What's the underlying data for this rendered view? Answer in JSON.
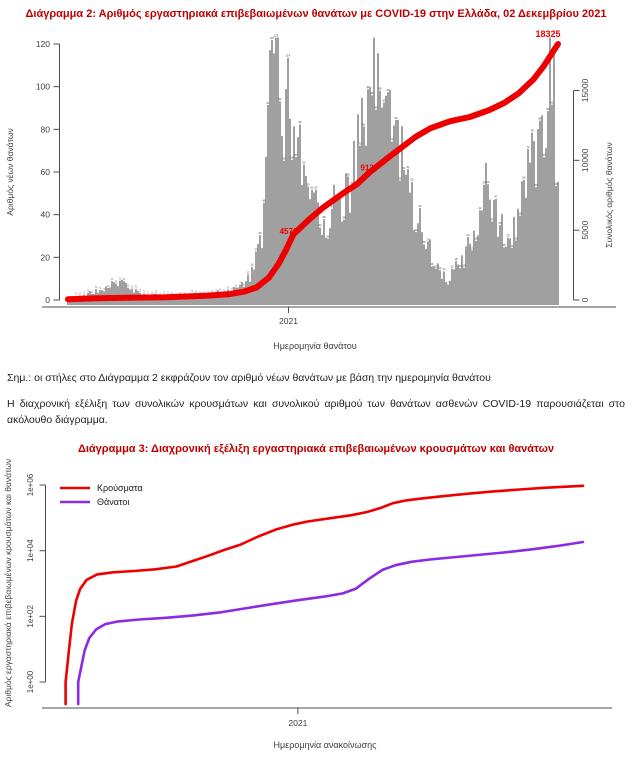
{
  "titles": {
    "chart2": "Διάγραμμα 2: Αριθμός εργαστηριακά επιβεβαιωμένων θανάτων με COVID-19 στην Ελλάδα, 02 Δεκεμβρίου 2021",
    "chart3": "Διάγραμμα 3: Διαχρονική εξέλιξη εργαστηριακά επιβεβαιωμένων κρουσμάτων και θανάτων"
  },
  "note": "Σημ.: οι στήλες στο Διάγραμμα 2 εκφράζουν τον αριθμό νέων θανάτων με βάση την ημερομηνία θανάτου",
  "paragraph": "Η διαχρονική εξέλιξη των συνολικών κρουσμάτων και συνολικού αριθμού των θανάτων ασθενών COVID-19 παρουσιάζεται στο ακόλουθο διάγραμμα.",
  "colors": {
    "title_text": "#c00000",
    "body_text": "#1f1f1f",
    "axis_line": "#4d4d4d",
    "tick_text": "#3f3f3f",
    "bars": "#8f8f8f",
    "bar_labels": "#3a3a3a",
    "cumulative_line": "#ee0000",
    "cases_line": "#ee0000",
    "deaths_line": "#8b2be2",
    "annotation_text": "#ee0000"
  },
  "chart_data": [
    {
      "type": "bar+line",
      "title": "Διάγραμμα 2: Αριθμός εργαστηριακά επιβεβαιωμένων θανάτων με COVID-19 στην Ελλάδα, 02 Δεκεμβρίου 2021",
      "xlabel": "Ημερομηνία θανάτου",
      "ylabel_left": "Αριθμός νέων θανάτων",
      "ylabel_right": "Συνολικός αριθμός θανάτων",
      "x_ticks": [
        {
          "label": "2021",
          "t": 0.45
        }
      ],
      "y_left_ticks": [
        0,
        20,
        40,
        60,
        80,
        100,
        120
      ],
      "y_right_ticks": [
        0,
        5000,
        10000,
        15000
      ],
      "ylim_left": [
        0,
        120
      ],
      "ylim_right": [
        0,
        18325
      ],
      "grid": false,
      "bars_envelope": [
        [
          0.0,
          1
        ],
        [
          0.03,
          2
        ],
        [
          0.06,
          4
        ],
        [
          0.085,
          7
        ],
        [
          0.1,
          9
        ],
        [
          0.12,
          6
        ],
        [
          0.15,
          3
        ],
        [
          0.19,
          2
        ],
        [
          0.23,
          2
        ],
        [
          0.28,
          3
        ],
        [
          0.32,
          4
        ],
        [
          0.35,
          6
        ],
        [
          0.37,
          10
        ],
        [
          0.385,
          18
        ],
        [
          0.395,
          30
        ],
        [
          0.405,
          60
        ],
        [
          0.412,
          95
        ],
        [
          0.418,
          121
        ],
        [
          0.428,
          110
        ],
        [
          0.44,
          92
        ],
        [
          0.455,
          85
        ],
        [
          0.47,
          72
        ],
        [
          0.49,
          55
        ],
        [
          0.51,
          45
        ],
        [
          0.525,
          38
        ],
        [
          0.545,
          42
        ],
        [
          0.565,
          52
        ],
        [
          0.585,
          62
        ],
        [
          0.605,
          78
        ],
        [
          0.62,
          92
        ],
        [
          0.635,
          106
        ],
        [
          0.65,
          92
        ],
        [
          0.665,
          82
        ],
        [
          0.68,
          66
        ],
        [
          0.7,
          50
        ],
        [
          0.72,
          34
        ],
        [
          0.74,
          22
        ],
        [
          0.755,
          15
        ],
        [
          0.775,
          10
        ],
        [
          0.79,
          12
        ],
        [
          0.81,
          20
        ],
        [
          0.83,
          32
        ],
        [
          0.85,
          43
        ],
        [
          0.87,
          40
        ],
        [
          0.885,
          33
        ],
        [
          0.9,
          28
        ],
        [
          0.915,
          34
        ],
        [
          0.93,
          45
        ],
        [
          0.945,
          60
        ],
        [
          0.96,
          78
        ],
        [
          0.972,
          95
        ],
        [
          0.983,
          115
        ],
        [
          0.99,
          100
        ],
        [
          1.0,
          55
        ]
      ],
      "cumulative_line": [
        [
          0.0,
          50
        ],
        [
          0.06,
          120
        ],
        [
          0.12,
          165
        ],
        [
          0.2,
          200
        ],
        [
          0.28,
          300
        ],
        [
          0.33,
          420
        ],
        [
          0.36,
          600
        ],
        [
          0.385,
          900
        ],
        [
          0.41,
          1600
        ],
        [
          0.43,
          2600
        ],
        [
          0.445,
          3600
        ],
        [
          0.46,
          4700
        ],
        [
          0.49,
          5700
        ],
        [
          0.52,
          6600
        ],
        [
          0.56,
          7600
        ],
        [
          0.59,
          8300
        ],
        [
          0.615,
          9126
        ],
        [
          0.65,
          10100
        ],
        [
          0.68,
          10900
        ],
        [
          0.71,
          11700
        ],
        [
          0.74,
          12300
        ],
        [
          0.78,
          12800
        ],
        [
          0.82,
          13100
        ],
        [
          0.86,
          13600
        ],
        [
          0.89,
          14100
        ],
        [
          0.92,
          14800
        ],
        [
          0.95,
          15800
        ],
        [
          0.97,
          16700
        ],
        [
          1.0,
          18325
        ]
      ],
      "annotations": [
        {
          "t": 0.45,
          "value": 4576,
          "label": "4576"
        },
        {
          "t": 0.615,
          "value": 9126,
          "label": "9126"
        },
        {
          "t": 1.0,
          "value": 18325,
          "label": "18325"
        }
      ]
    },
    {
      "type": "line",
      "yscale": "log",
      "title": "Διάγραμμα 3: Διαχρονική εξέλιξη εργαστηριακά επιβεβαιωμένων κρουσμάτων και θανάτων",
      "xlabel": "Ημερομηνία ανακοίνωσης",
      "ylabel": "Αριθμός εργαστηριακά επιβεβαιωμένων κρουσμάτων και θανάτων",
      "x_ticks": [
        {
          "label": "2021",
          "t": 0.46
        }
      ],
      "y_ticks": [
        "1e+00",
        "1e+02",
        "1e+04",
        "1e+06"
      ],
      "ylim": [
        1,
        1000000
      ],
      "grid": false,
      "legend_position": "topleft",
      "series": [
        {
          "name": "Κρούσματα",
          "color": "#ee0000",
          "points": [
            [
              0.02,
              1
            ],
            [
              0.026,
              8
            ],
            [
              0.032,
              60
            ],
            [
              0.04,
              300
            ],
            [
              0.048,
              700
            ],
            [
              0.06,
              1300
            ],
            [
              0.08,
              1900
            ],
            [
              0.11,
              2200
            ],
            [
              0.15,
              2400
            ],
            [
              0.19,
              2700
            ],
            [
              0.23,
              3300
            ],
            [
              0.26,
              4800
            ],
            [
              0.29,
              7000
            ],
            [
              0.32,
              10500
            ],
            [
              0.35,
              15000
            ],
            [
              0.385,
              27000
            ],
            [
              0.42,
              45000
            ],
            [
              0.45,
              62000
            ],
            [
              0.48,
              78000
            ],
            [
              0.52,
              97000
            ],
            [
              0.56,
              120000
            ],
            [
              0.59,
              150000
            ],
            [
              0.615,
              195000
            ],
            [
              0.64,
              280000
            ],
            [
              0.665,
              340000
            ],
            [
              0.695,
              390000
            ],
            [
              0.73,
              450000
            ],
            [
              0.78,
              540000
            ],
            [
              0.83,
              640000
            ],
            [
              0.88,
              730000
            ],
            [
              0.93,
              830000
            ],
            [
              1.0,
              950000
            ]
          ]
        },
        {
          "name": "Θάνατοι",
          "color": "#8b2be2",
          "points": [
            [
              0.044,
              1
            ],
            [
              0.05,
              3
            ],
            [
              0.056,
              9
            ],
            [
              0.065,
              22
            ],
            [
              0.078,
              40
            ],
            [
              0.095,
              58
            ],
            [
              0.12,
              70
            ],
            [
              0.16,
              80
            ],
            [
              0.21,
              90
            ],
            [
              0.26,
              105
            ],
            [
              0.31,
              130
            ],
            [
              0.36,
              175
            ],
            [
              0.41,
              235
            ],
            [
              0.46,
              310
            ],
            [
              0.51,
              400
            ],
            [
              0.545,
              500
            ],
            [
              0.57,
              700
            ],
            [
              0.595,
              1400
            ],
            [
              0.62,
              2600
            ],
            [
              0.645,
              3600
            ],
            [
              0.675,
              4600
            ],
            [
              0.71,
              5400
            ],
            [
              0.75,
              6200
            ],
            [
              0.8,
              7400
            ],
            [
              0.85,
              8800
            ],
            [
              0.9,
              10800
            ],
            [
              0.95,
              13800
            ],
            [
              1.0,
              18325
            ]
          ]
        }
      ]
    }
  ]
}
